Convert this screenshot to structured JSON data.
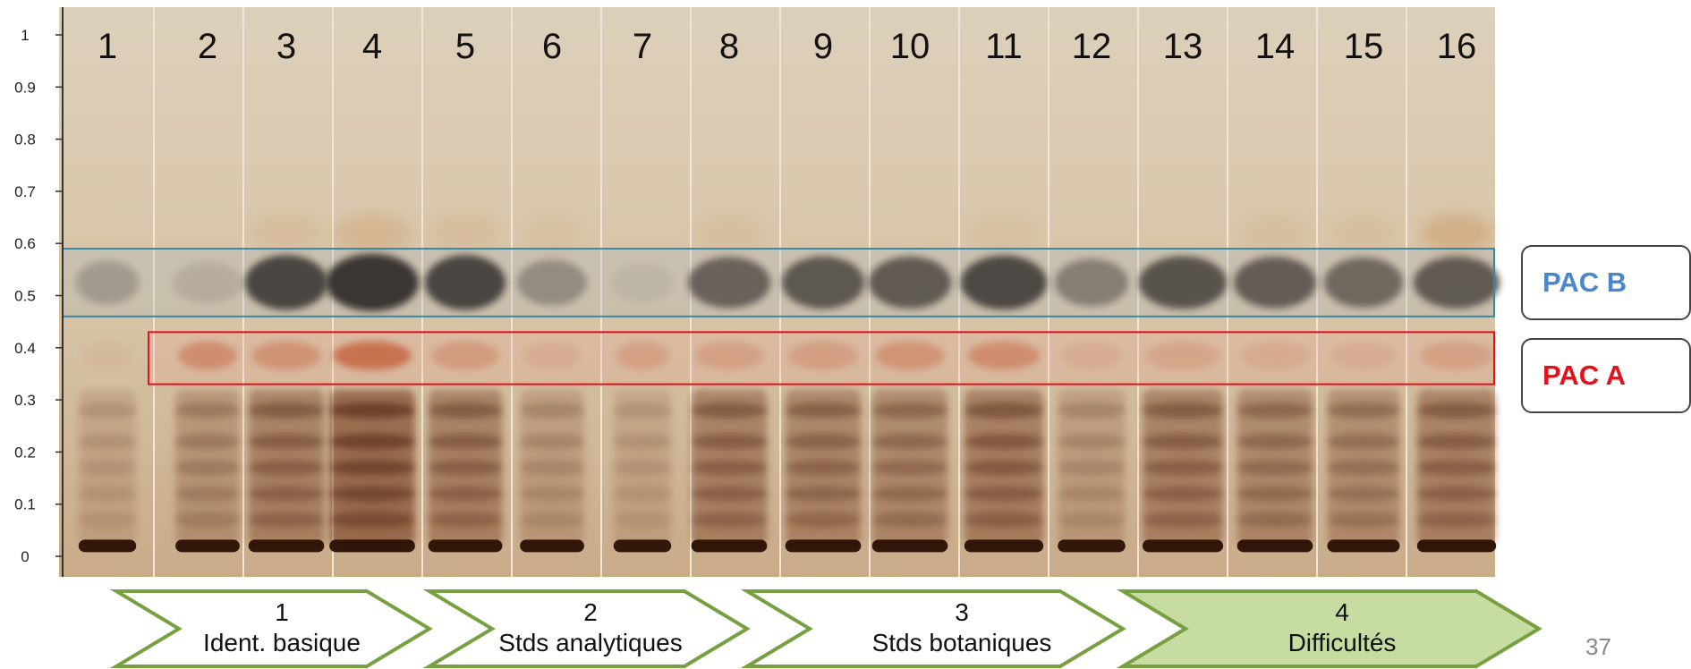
{
  "lanes": [
    "1",
    "2",
    "3",
    "4",
    "5",
    "6",
    "7",
    "8",
    "9",
    "10",
    "11",
    "12",
    "13",
    "14",
    "15",
    "16"
  ],
  "rf_axis": {
    "ticks": [
      "1",
      "0.9",
      "0.8",
      "0.7",
      "0.6",
      "0.5",
      "0.4",
      "0.3",
      "0.2",
      "0.1",
      "0"
    ]
  },
  "bands": {
    "pac_b": {
      "label": "PAC B",
      "color": "#4a86c8",
      "box_color": "#3a88a8",
      "rf_range": [
        0.46,
        0.59
      ]
    },
    "pac_a": {
      "label": "PAC A",
      "color": "#e3111b",
      "box_color": "#e3111b",
      "rf_range": [
        0.33,
        0.43
      ]
    }
  },
  "stages": [
    {
      "number": "1",
      "label": "Ident. basique",
      "highlighted": false
    },
    {
      "number": "2",
      "label": "Stds analytiques",
      "highlighted": false
    },
    {
      "number": "3",
      "label": "Stds botaniques",
      "highlighted": false
    },
    {
      "number": "4",
      "label": "Difficultés",
      "highlighted": true
    }
  ],
  "colors": {
    "chevron_border": "#77a040",
    "chevron_fill_highlight": "#c6dca0",
    "plate_background": "#d9c8ae"
  },
  "page_number": "37"
}
